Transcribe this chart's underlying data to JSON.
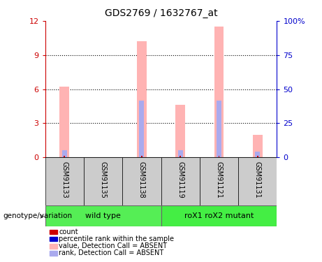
{
  "title": "GDS2769 / 1632767_at",
  "samples": [
    "GSM91133",
    "GSM91135",
    "GSM91138",
    "GSM91119",
    "GSM91121",
    "GSM91131"
  ],
  "pink_values": [
    6.2,
    0.0,
    10.2,
    4.6,
    11.5,
    2.0
  ],
  "blue_values": [
    0.6,
    0.0,
    5.0,
    0.6,
    5.0,
    0.5
  ],
  "red_count": [
    0.12,
    0.0,
    0.12,
    0.12,
    0.12,
    0.12
  ],
  "groups": [
    {
      "label": "wild type",
      "start": 0,
      "end": 3,
      "color": "#55ee55"
    },
    {
      "label": "roX1 roX2 mutant",
      "start": 3,
      "end": 6,
      "color": "#44ee44"
    }
  ],
  "ylim_left": [
    0,
    12
  ],
  "ylim_right": [
    0,
    100
  ],
  "yticks_left": [
    0,
    3,
    6,
    9,
    12
  ],
  "ytick_labels_left": [
    "0",
    "3",
    "6",
    "9",
    "12"
  ],
  "yticks_right": [
    0,
    25,
    50,
    75,
    100
  ],
  "ytick_labels_right": [
    "0",
    "25",
    "50",
    "75",
    "100%"
  ],
  "left_axis_color": "#cc0000",
  "right_axis_color": "#0000cc",
  "pink_color": "#ffb3b3",
  "blue_color": "#aaaaee",
  "red_color": "#cc0000",
  "bar_width": 0.25,
  "background_color": "#ffffff",
  "grid_color": "#000000",
  "legend_items": [
    {
      "color": "#cc0000",
      "label": "count"
    },
    {
      "color": "#0000cc",
      "label": "percentile rank within the sample"
    },
    {
      "color": "#ffb3b3",
      "label": "value, Detection Call = ABSENT"
    },
    {
      "color": "#aaaaee",
      "label": "rank, Detection Call = ABSENT"
    }
  ]
}
